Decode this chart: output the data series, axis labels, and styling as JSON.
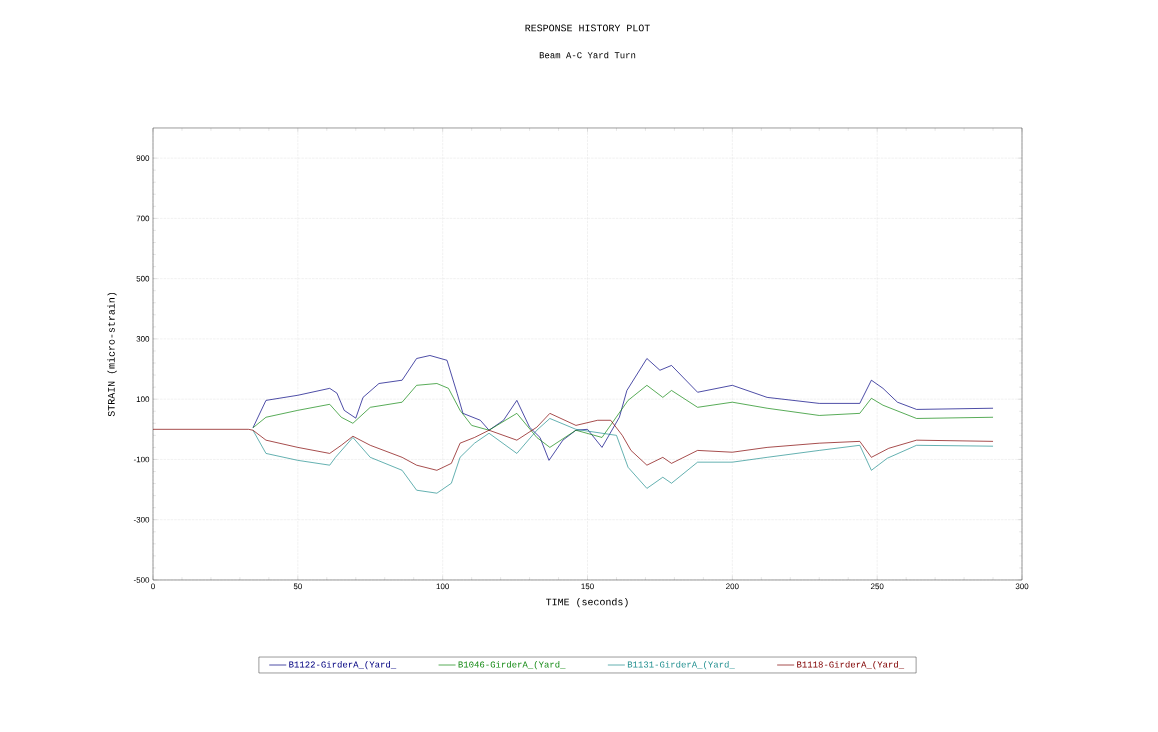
{
  "chart_data": {
    "type": "line",
    "title": "RESPONSE HISTORY PLOT",
    "subtitle": "Beam A-C Yard Turn",
    "xlabel": "TIME (seconds)",
    "ylabel": "STRAIN (micro-strain)",
    "xlim": [
      0,
      300
    ],
    "ylim": [
      -500,
      1000
    ],
    "xticks": [
      0,
      50,
      100,
      150,
      200,
      250,
      300
    ],
    "yticks": [
      -500,
      -300,
      -100,
      100,
      300,
      500,
      700,
      900
    ],
    "grid": true,
    "legend": "bottom",
    "series": [
      {
        "name": "B1122-GirderA_(Yard_",
        "color": "#000080",
        "x": [
          34.5,
          39,
          50,
          61,
          63.5,
          66,
          70,
          72.5,
          78,
          86,
          91,
          95.6,
          101.5,
          105,
          107,
          113,
          116,
          121,
          125.6,
          130,
          133.6,
          136.7,
          141.5,
          146,
          150,
          155,
          161,
          163.6,
          170.5,
          175,
          179,
          188,
          200,
          212,
          230,
          244,
          248,
          252,
          257,
          263.6,
          290
        ],
        "values": [
          5,
          96,
          113,
          136,
          120,
          63,
          37,
          106,
          152,
          163,
          235,
          245,
          229,
          119,
          53,
          30,
          -3,
          30,
          96,
          7,
          -27,
          -103,
          -36,
          -3,
          0,
          -60,
          40,
          129,
          235,
          196,
          212,
          123,
          146,
          106,
          86,
          86,
          163,
          136,
          90,
          66,
          70
        ]
      },
      {
        "name": "B1046-GirderA_(Yard_",
        "color": "#108810",
        "x": [
          34.5,
          39,
          50,
          61,
          65,
          69,
          75,
          86,
          91,
          98,
          102,
          106,
          110,
          116,
          125.6,
          132.5,
          137,
          146,
          155,
          164,
          170.5,
          176,
          179,
          188,
          200,
          212,
          230,
          244,
          248,
          252,
          263.6,
          290
        ],
        "values": [
          5,
          40,
          63,
          83,
          40,
          20,
          73,
          90,
          146,
          152,
          136,
          63,
          13,
          -3,
          53,
          -27,
          -60,
          -3,
          -27,
          96,
          146,
          106,
          129,
          73,
          90,
          70,
          46,
          53,
          103,
          80,
          36,
          40
        ]
      },
      {
        "name": "B1131-GirderA_(Yard_",
        "color": "#218f8f",
        "x": [
          34.5,
          39,
          50,
          61,
          63,
          69,
          75,
          86,
          91,
          98,
          103,
          106,
          111,
          116,
          125.6,
          132.5,
          137,
          146,
          155,
          160,
          164,
          170.5,
          176,
          179,
          188,
          200,
          212,
          230,
          244,
          248,
          253.5,
          263.6,
          290
        ],
        "values": [
          -3,
          -80,
          -103,
          -119,
          -93,
          -27,
          -93,
          -136,
          -202,
          -212,
          -179,
          -93,
          -46,
          -13,
          -80,
          -3,
          36,
          0,
          -13,
          -20,
          -126,
          -196,
          -159,
          -179,
          -109,
          -109,
          -93,
          -70,
          -53,
          -136,
          -96,
          -53,
          -56
        ]
      },
      {
        "name": "B1118-GirderA_(Yard_",
        "color": "#800000",
        "x": [
          0,
          33,
          34.5,
          39,
          50,
          61,
          65,
          69,
          75,
          86,
          91,
          98,
          103,
          106,
          111,
          116,
          125.6,
          132.5,
          137,
          146,
          153.5,
          158,
          162,
          165,
          170.5,
          176,
          179,
          188,
          200,
          212,
          230,
          244,
          248,
          254,
          263.6,
          290
        ],
        "values": [
          0,
          0,
          -3,
          -36,
          -60,
          -80,
          -53,
          -23,
          -53,
          -93,
          -119,
          -136,
          -113,
          -46,
          -27,
          -3,
          -36,
          7,
          53,
          13,
          30,
          30,
          -20,
          -70,
          -119,
          -93,
          -113,
          -70,
          -76,
          -60,
          -46,
          -40,
          -93,
          -63,
          -36,
          -40
        ]
      }
    ]
  }
}
